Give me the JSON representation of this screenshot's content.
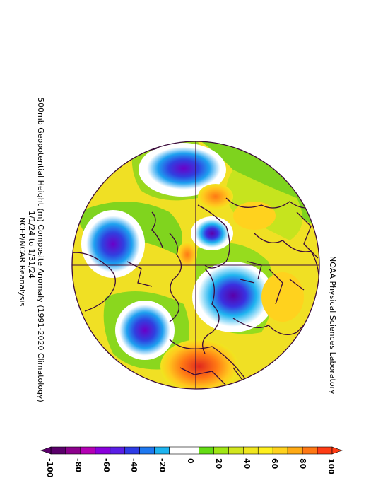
{
  "title": {
    "line1": "500mb Geopotential Height (m) Composite Anomaly (1991-2020 Climatology)",
    "line2": "1/1/24  to  1/31/24",
    "line3": "NCEP/NCAR Reanalysis"
  },
  "source": "NOAA Physical Sciences Laboratory",
  "colorbar": {
    "ticks": [
      "-100",
      "-80",
      "-60",
      "-40",
      "-20",
      "0",
      "20",
      "40",
      "60",
      "80",
      "100"
    ],
    "colors": [
      "#5b006b",
      "#8c008c",
      "#b400b4",
      "#8a00dc",
      "#5a1ee6",
      "#2e3ce6",
      "#1e78f0",
      "#1eb4f0",
      "#ffffff",
      "#ffffff",
      "#64dc14",
      "#a0e614",
      "#d2e61e",
      "#f0e61e",
      "#fff01e",
      "#ffd21e",
      "#ffaa14",
      "#ff7814",
      "#ff3c14"
    ],
    "end_colors": {
      "low": "#5b006b",
      "high": "#ff3c14"
    }
  },
  "map": {
    "projection": "north polar stereographic",
    "background_color": "#f5dc28"
  }
}
